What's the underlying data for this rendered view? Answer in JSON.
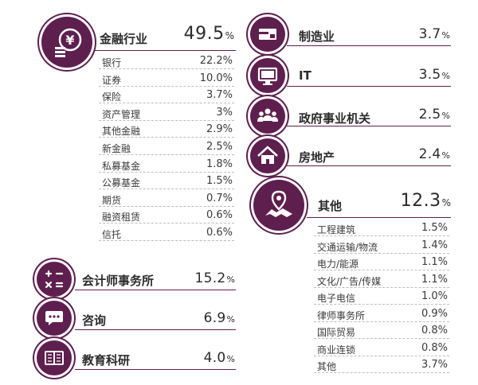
{
  "accent_color": "#5e1f4f",
  "chart_data": {
    "type": "table",
    "title": "",
    "categories": [
      {
        "name": "金融行业",
        "value": "49.5",
        "unit": "%",
        "icon": "yen-coin-icon",
        "sub": [
          {
            "name": "银行",
            "value": "22.2%"
          },
          {
            "name": "证券",
            "value": "10.0%"
          },
          {
            "name": "保险",
            "value": "3.7%"
          },
          {
            "name": "资产管理",
            "value": "3%"
          },
          {
            "name": "其他金融",
            "value": "2.9%"
          },
          {
            "name": "新金融",
            "value": "2.5%"
          },
          {
            "name": "私募基金",
            "value": "1.8%"
          },
          {
            "name": "公募基金",
            "value": "1.5%"
          },
          {
            "name": "期货",
            "value": "0.7%"
          },
          {
            "name": "融资租赁",
            "value": "0.6%"
          },
          {
            "name": "信托",
            "value": "0.6%"
          }
        ]
      },
      {
        "name": "会计师事务所",
        "value": "15.2",
        "unit": "%",
        "icon": "calculator-icon"
      },
      {
        "name": "咨询",
        "value": "6.9",
        "unit": "%",
        "icon": "chat-bubble-icon"
      },
      {
        "name": "教育科研",
        "value": "4.0",
        "unit": "%",
        "icon": "book-icon"
      },
      {
        "name": "制造业",
        "value": "3.7",
        "unit": "%",
        "icon": "factory-icon"
      },
      {
        "name": "IT",
        "value": "3.5",
        "unit": "%",
        "icon": "monitor-icon"
      },
      {
        "name": "政府事业机关",
        "value": "2.5",
        "unit": "%",
        "icon": "people-icon"
      },
      {
        "name": "房地产",
        "value": "2.4",
        "unit": "%",
        "icon": "house-icon"
      },
      {
        "name": "其他",
        "value": "12.3",
        "unit": "%",
        "icon": "map-pin-icon",
        "sub": [
          {
            "name": "工程建筑",
            "value": "1.5%"
          },
          {
            "name": "交通运输/物流",
            "value": "1.4%"
          },
          {
            "name": "电力/能源",
            "value": "1.1%"
          },
          {
            "name": "文化/广告/传媒",
            "value": "1.1%"
          },
          {
            "name": "电子电信",
            "value": "1.0%"
          },
          {
            "name": "律师事务所",
            "value": "0.9%"
          },
          {
            "name": "国际贸易",
            "value": "0.8%"
          },
          {
            "name": "商业连锁",
            "value": "0.8%"
          },
          {
            "name": "其他",
            "value": "3.7%"
          }
        ]
      }
    ]
  }
}
